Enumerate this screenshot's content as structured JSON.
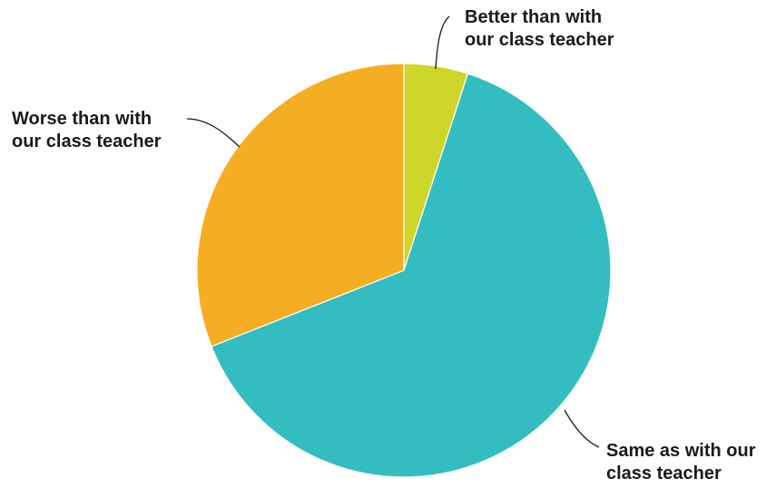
{
  "chart_data": {
    "type": "pie",
    "title": "",
    "slices": [
      {
        "label_lines": [
          "Better than with",
          "our class teacher"
        ],
        "value": 5,
        "color": "#cfd62a"
      },
      {
        "label_lines": [
          "Same as with our",
          "class teacher"
        ],
        "value": 64,
        "color": "#33bdc0"
      },
      {
        "label_lines": [
          "Worse than with",
          "our class teacher"
        ],
        "value": 31,
        "color": "#f5ae22"
      }
    ],
    "legend": "none",
    "label_style": "outside-with-leader-lines"
  }
}
